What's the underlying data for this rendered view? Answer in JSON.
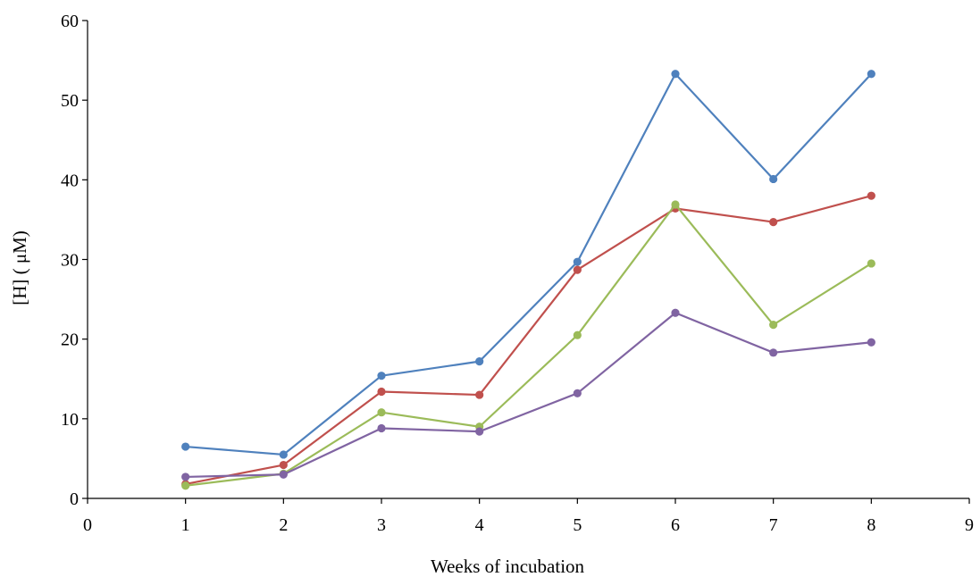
{
  "chart_data": {
    "type": "line",
    "title": "",
    "xlabel": "Weeks of incubation",
    "ylabel": "[H] ( μM)",
    "xlim": [
      0,
      9
    ],
    "ylim": [
      0,
      60
    ],
    "x_ticks": [
      "0",
      "1",
      "2",
      "3",
      "4",
      "5",
      "6",
      "7",
      "8",
      "9"
    ],
    "y_ticks": [
      "0",
      "10",
      "20",
      "30",
      "40",
      "50",
      "60"
    ],
    "grid": false,
    "legend": "none",
    "x": [
      1,
      2,
      3,
      4,
      5,
      6,
      7,
      8
    ],
    "series": [
      {
        "color": "#4f81bd",
        "values": [
          6.5,
          5.5,
          15.4,
          17.2,
          29.7,
          53.3,
          40.1,
          53.3
        ]
      },
      {
        "color": "#c0504d",
        "values": [
          1.8,
          4.2,
          13.4,
          13.0,
          28.7,
          36.4,
          34.7,
          38.0
        ]
      },
      {
        "color": "#9bbb59",
        "values": [
          1.6,
          3.1,
          10.8,
          9.0,
          20.5,
          36.9,
          21.8,
          29.5
        ]
      },
      {
        "color": "#8064a2",
        "values": [
          2.7,
          3.0,
          8.8,
          8.4,
          13.2,
          23.3,
          18.3,
          19.6
        ]
      }
    ]
  }
}
